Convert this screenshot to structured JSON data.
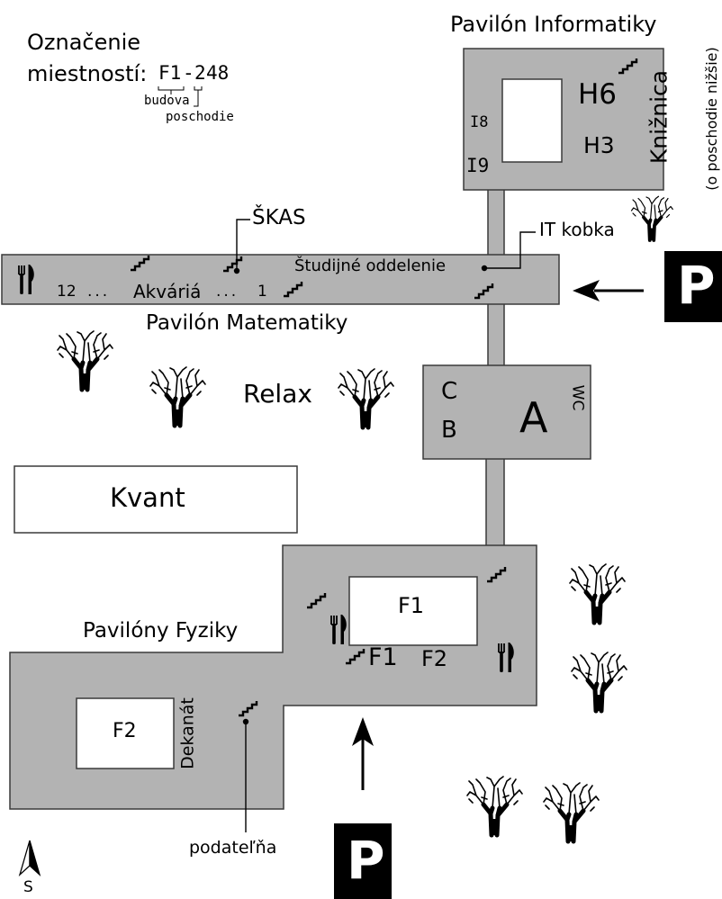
{
  "legend": {
    "title_line1": "Označenie",
    "title_line2": "miestností:",
    "example_building": "F1",
    "example_dash": "-",
    "example_floor": "2",
    "example_room": "48",
    "label_building": "budova",
    "label_floor": "poschodie"
  },
  "informatika": {
    "title": "Pavilón Informatiky",
    "h6": "H6",
    "h3": "H3",
    "i8": "I8",
    "i9": "I9",
    "library": "Knižnica",
    "library_note": "(o poschodie nižšie)"
  },
  "matematika": {
    "title": "Pavilón Matematiky",
    "skas": "ŠKAS",
    "it_kobka": "IT kobka",
    "study_office": "Študijné oddelenie",
    "num_12": "12",
    "dots_left": "...",
    "akvaria": "Akváriá",
    "dots_right": "...",
    "num_1": "1"
  },
  "central": {
    "relax": "Relax",
    "c": "C",
    "b": "B",
    "a": "A",
    "wc": "WC"
  },
  "kvant": {
    "label": "Kvant"
  },
  "fyzika": {
    "title": "Pavilóny Fyziky",
    "f1_box": "F1",
    "f1_label": "F1",
    "f2_label": "F2",
    "f2_box": "F2",
    "dekanat": "Dekanát",
    "podatelna": "podateľňa"
  },
  "parking": {
    "symbol": "P"
  },
  "compass": {
    "label": "S"
  },
  "colors": {
    "building_fill": "#b3b3b3",
    "outline": "#3a3a3a",
    "parking_bg": "#000000",
    "parking_fg": "#ffffff"
  },
  "icons": [
    "stairs-icon",
    "restaurant-icon",
    "tree-icon",
    "arrow-icon",
    "north-arrow-icon",
    "parking-icon"
  ]
}
